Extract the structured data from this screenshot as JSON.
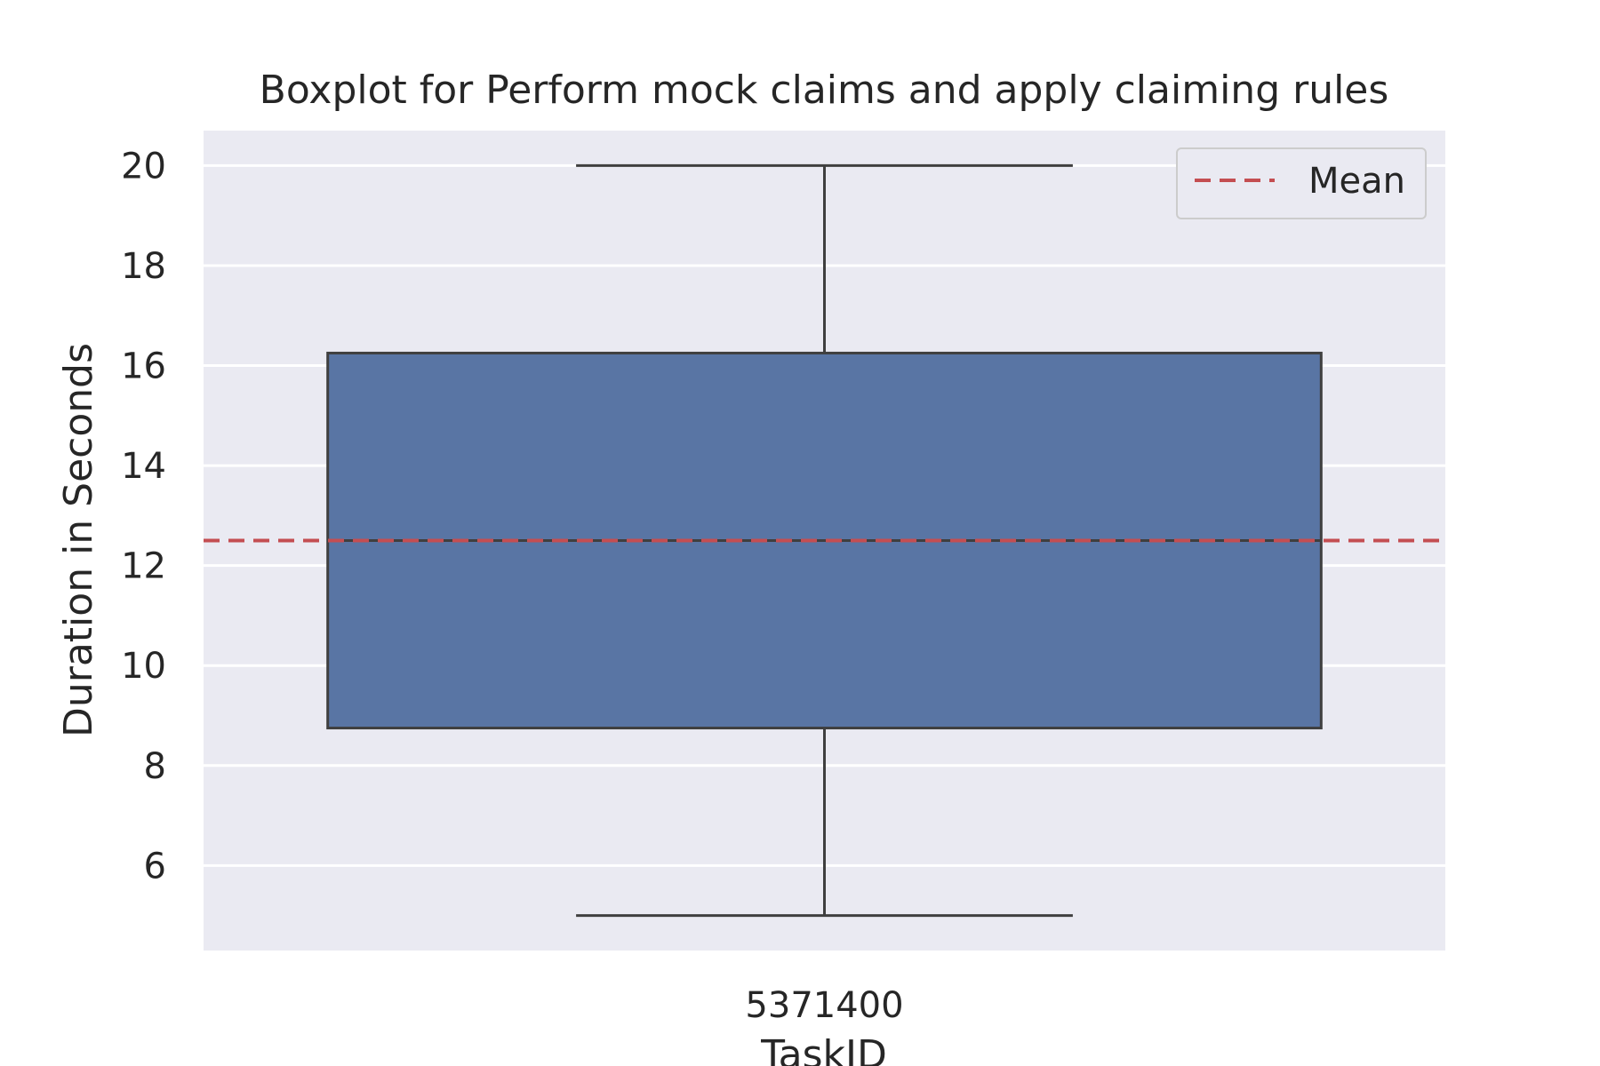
{
  "chart_data": {
    "type": "box",
    "title": "Boxplot for Perform mock claims and apply claiming rules",
    "xlabel": "TaskID",
    "ylabel": "Duration in Seconds",
    "categories": [
      "5371400"
    ],
    "ylim": [
      4.3,
      20.7
    ],
    "yticks": [
      6,
      8,
      10,
      12,
      14,
      16,
      18,
      20
    ],
    "grid": "horizontal",
    "legend": {
      "placement": "top-right",
      "entries": [
        "Mean"
      ]
    },
    "boxes": [
      {
        "category": "5371400",
        "min": 5,
        "q1": 8.75,
        "median": 12.5,
        "q3": 16.25,
        "max": 20
      }
    ],
    "mean_line": {
      "label": "Mean",
      "value": 12.5
    },
    "colors": {
      "box_fill": "#5975a4",
      "box_edge": "#3f3f3f",
      "mean_line": "#c44e52",
      "plot_bg": "#eaeaf2",
      "grid": "#ffffff"
    }
  }
}
